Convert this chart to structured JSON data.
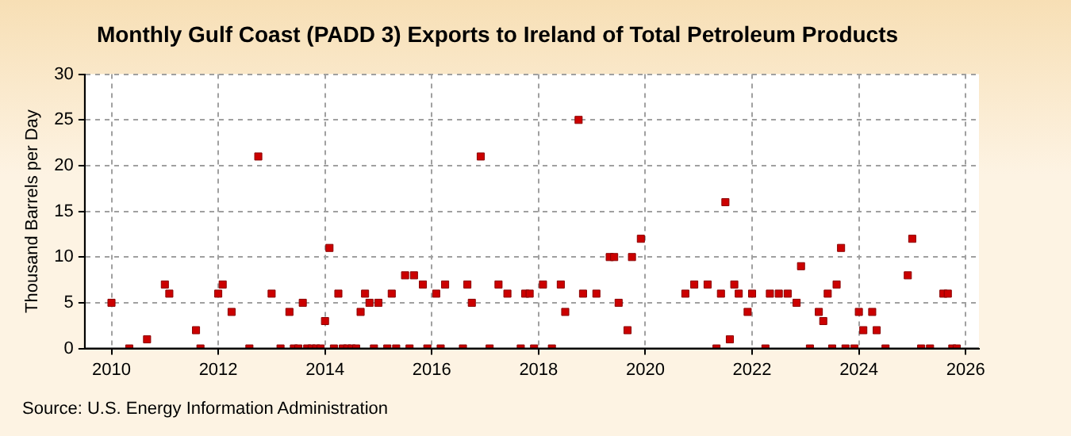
{
  "chart_data": {
    "type": "scatter",
    "title": "Monthly Gulf Coast (PADD 3) Exports to Ireland of Total Petroleum Products",
    "ylabel": "Thousand Barrels per Day",
    "annotations": [
      "Source: U.S. Energy Information Administration"
    ],
    "marker": "square",
    "grid": true,
    "xlim": [
      "2009-07",
      "2026-04"
    ],
    "xticks": [
      "2010",
      "2012",
      "2014",
      "2016",
      "2018",
      "2020",
      "2022",
      "2024",
      "2026"
    ],
    "ylim": [
      0,
      30
    ],
    "yticks": [
      0,
      5,
      10,
      15,
      20,
      25,
      30
    ],
    "series": [
      {
        "color": "#cc0000",
        "x": [
          "2010-01",
          "2010-05",
          "2010-09",
          "2011-01",
          "2011-02",
          "2011-08",
          "2011-09",
          "2012-01",
          "2012-02",
          "2012-04",
          "2012-08",
          "2012-10",
          "2013-01",
          "2013-03",
          "2013-05",
          "2013-06",
          "2013-07",
          "2013-08",
          "2013-09",
          "2013-10",
          "2013-11",
          "2013-12",
          "2014-01",
          "2014-02",
          "2014-03",
          "2014-04",
          "2014-05",
          "2014-06",
          "2014-07",
          "2014-08",
          "2014-09",
          "2014-10",
          "2014-11",
          "2014-12",
          "2015-01",
          "2015-03",
          "2015-04",
          "2015-05",
          "2015-07",
          "2015-08",
          "2015-09",
          "2015-11",
          "2015-12",
          "2016-02",
          "2016-03",
          "2016-04",
          "2016-08",
          "2016-09",
          "2016-10",
          "2016-12",
          "2017-02",
          "2017-04",
          "2017-06",
          "2017-09",
          "2017-10",
          "2017-11",
          "2017-12",
          "2018-02",
          "2018-04",
          "2018-06",
          "2018-07",
          "2018-10",
          "2018-11",
          "2019-02",
          "2019-05",
          "2019-06",
          "2019-07",
          "2019-09",
          "2019-10",
          "2019-12",
          "2020-10",
          "2020-12",
          "2021-03",
          "2021-05",
          "2021-06",
          "2021-07",
          "2021-08",
          "2021-09",
          "2021-10",
          "2021-12",
          "2022-01",
          "2022-04",
          "2022-05",
          "2022-07",
          "2022-09",
          "2022-11",
          "2022-12",
          "2023-02",
          "2023-04",
          "2023-05",
          "2023-06",
          "2023-07",
          "2023-08",
          "2023-09",
          "2023-10",
          "2023-12",
          "2024-01",
          "2024-02",
          "2024-04",
          "2024-05",
          "2024-07",
          "2024-12",
          "2025-01",
          "2025-03",
          "2025-05",
          "2025-08",
          "2025-09",
          "2025-10",
          "2025-11"
        ],
        "values": [
          5,
          0,
          1,
          7,
          6,
          2,
          0,
          6,
          7,
          4,
          0,
          21,
          6,
          0,
          4,
          0,
          0,
          5,
          0,
          0,
          0,
          0,
          3,
          11,
          0,
          6,
          0,
          0,
          0,
          0,
          4,
          6,
          5,
          0,
          5,
          0,
          6,
          0,
          8,
          0,
          8,
          7,
          0,
          6,
          0,
          7,
          0,
          7,
          5,
          21,
          0,
          7,
          6,
          0,
          6,
          6,
          0,
          7,
          0,
          7,
          4,
          25,
          6,
          6,
          10,
          10,
          5,
          2,
          10,
          12,
          6,
          7,
          7,
          0,
          6,
          16,
          1,
          7,
          6,
          4,
          6,
          0,
          6,
          6,
          6,
          5,
          9,
          0,
          4,
          3,
          6,
          0,
          7,
          11,
          0,
          0,
          4,
          2,
          4,
          2,
          0,
          8,
          12,
          0,
          0,
          6,
          6,
          0,
          0
        ]
      }
    ]
  }
}
